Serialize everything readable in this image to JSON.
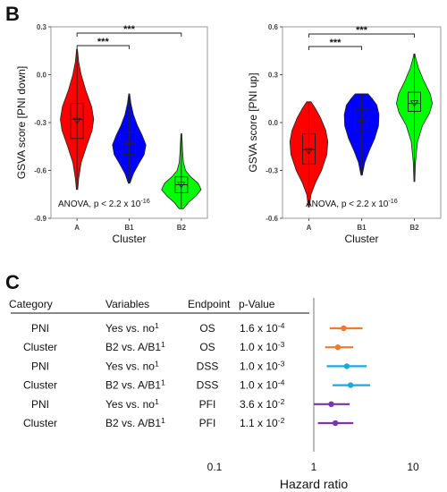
{
  "panel_b": {
    "letter": "B"
  },
  "panel_c": {
    "letter": "C"
  },
  "chart_data": [
    {
      "type": "violin",
      "panel": "B-left",
      "ylabel": "GSVA score [PNI down]",
      "xlabel": "Cluster",
      "ylim": [
        -0.9,
        0.3
      ],
      "yticks": [
        0.3,
        0.0,
        -0.3,
        -0.6,
        -0.9
      ],
      "ytick_labels": [
        "0.3",
        "0.0",
        "-0.3",
        "-0.6",
        "-0.9"
      ],
      "annotation": {
        "prefix": "ANOVA, p < 2.2 x 10",
        "exp": "-16"
      },
      "significance": [
        {
          "from": "A",
          "to": "B1",
          "label": "***"
        },
        {
          "from": "A",
          "to": "B2",
          "label": "***"
        }
      ],
      "groups": [
        {
          "name": "A",
          "color": "#ff0000",
          "min": -0.72,
          "max": 0.16,
          "q1": -0.4,
          "median": -0.28,
          "q3": -0.18,
          "mean": -0.29,
          "profile": [
            [
              -0.72,
              0.03
            ],
            [
              -0.65,
              0.08
            ],
            [
              -0.55,
              0.2
            ],
            [
              -0.45,
              0.45
            ],
            [
              -0.35,
              0.72
            ],
            [
              -0.28,
              0.8
            ],
            [
              -0.2,
              0.7
            ],
            [
              -0.1,
              0.42
            ],
            [
              0.0,
              0.2
            ],
            [
              0.08,
              0.08
            ],
            [
              0.16,
              0.02
            ]
          ]
        },
        {
          "name": "B1",
          "color": "#0000ff",
          "min": -0.68,
          "max": -0.12,
          "q1": -0.5,
          "median": -0.43,
          "q3": -0.36,
          "mean": -0.43,
          "profile": [
            [
              -0.68,
              0.04
            ],
            [
              -0.62,
              0.2
            ],
            [
              -0.56,
              0.45
            ],
            [
              -0.5,
              0.72
            ],
            [
              -0.44,
              0.8
            ],
            [
              -0.38,
              0.62
            ],
            [
              -0.32,
              0.4
            ],
            [
              -0.25,
              0.2
            ],
            [
              -0.18,
              0.08
            ],
            [
              -0.12,
              0.02
            ]
          ]
        },
        {
          "name": "B2",
          "color": "#00ff00",
          "min": -0.84,
          "max": -0.37,
          "q1": -0.74,
          "median": -0.69,
          "q3": -0.64,
          "mean": -0.69,
          "profile": [
            [
              -0.84,
              0.1
            ],
            [
              -0.8,
              0.35
            ],
            [
              -0.76,
              0.7
            ],
            [
              -0.72,
              0.95
            ],
            [
              -0.68,
              0.8
            ],
            [
              -0.64,
              0.45
            ],
            [
              -0.6,
              0.2
            ],
            [
              -0.55,
              0.1
            ],
            [
              -0.48,
              0.06
            ],
            [
              -0.42,
              0.04
            ],
            [
              -0.37,
              0.02
            ]
          ]
        }
      ]
    },
    {
      "type": "violin",
      "panel": "B-right",
      "ylabel": "GSVA score [PNI up]",
      "xlabel": "Cluster",
      "ylim": [
        -0.6,
        0.6
      ],
      "yticks": [
        0.6,
        0.3,
        0.0,
        -0.3,
        -0.6
      ],
      "ytick_labels": [
        "0.6",
        "0.3",
        "0.0",
        "-0.3",
        "-0.6"
      ],
      "annotation": {
        "prefix": "ANOVA, p < 2.2 x 10",
        "exp": "-16"
      },
      "significance": [
        {
          "from": "A",
          "to": "B1",
          "label": "***"
        },
        {
          "from": "A",
          "to": "B2",
          "label": "***"
        }
      ],
      "groups": [
        {
          "name": "A",
          "color": "#ff0000",
          "min": -0.53,
          "max": 0.13,
          "q1": -0.26,
          "median": -0.17,
          "q3": -0.07,
          "mean": -0.18,
          "profile": [
            [
              -0.53,
              0.02
            ],
            [
              -0.45,
              0.1
            ],
            [
              -0.38,
              0.3
            ],
            [
              -0.3,
              0.6
            ],
            [
              -0.2,
              0.85
            ],
            [
              -0.12,
              0.9
            ],
            [
              -0.05,
              0.8
            ],
            [
              0.03,
              0.55
            ],
            [
              0.09,
              0.3
            ],
            [
              0.13,
              0.1
            ]
          ]
        },
        {
          "name": "B1",
          "color": "#0000ff",
          "min": -0.33,
          "max": 0.18,
          "q1": -0.05,
          "median": 0.01,
          "q3": 0.08,
          "mean": 0.0,
          "profile": [
            [
              -0.33,
              0.03
            ],
            [
              -0.25,
              0.15
            ],
            [
              -0.18,
              0.35
            ],
            [
              -0.1,
              0.62
            ],
            [
              -0.02,
              0.8
            ],
            [
              0.05,
              0.82
            ],
            [
              0.11,
              0.72
            ],
            [
              0.15,
              0.5
            ],
            [
              0.18,
              0.3
            ]
          ]
        },
        {
          "name": "B2",
          "color": "#00ff00",
          "min": -0.37,
          "max": 0.43,
          "q1": 0.07,
          "median": 0.12,
          "q3": 0.19,
          "mean": 0.12,
          "profile": [
            [
              -0.37,
              0.02
            ],
            [
              -0.25,
              0.05
            ],
            [
              -0.12,
              0.15
            ],
            [
              -0.02,
              0.38
            ],
            [
              0.06,
              0.72
            ],
            [
              0.12,
              0.85
            ],
            [
              0.18,
              0.75
            ],
            [
              0.26,
              0.45
            ],
            [
              0.34,
              0.2
            ],
            [
              0.4,
              0.07
            ],
            [
              0.43,
              0.02
            ]
          ]
        }
      ]
    },
    {
      "type": "forest",
      "panel": "C",
      "xlabel": "Hazard ratio",
      "xscale": "log",
      "xlim": [
        0.1,
        10
      ],
      "xticks": [
        0.1,
        1,
        10
      ],
      "xtick_labels": [
        "0.1",
        "1",
        "10"
      ],
      "reference": 1,
      "columns": [
        "Category",
        "Variables",
        "Endpoint",
        "p-Value"
      ],
      "rows": [
        {
          "category": "PNI",
          "variable": "Yes vs. no",
          "sup": "1",
          "endpoint": "OS",
          "endpoint_color": "#ee7a2d",
          "p_mant": "1.6 x 10",
          "p_exp": "-4",
          "hr": 2.0,
          "lo": 1.45,
          "hi": 3.1
        },
        {
          "category": "Cluster",
          "variable": "B2 vs. A/B1",
          "sup": "1",
          "endpoint": "OS",
          "endpoint_color": "#ee7a2d",
          "p_mant": "1.0 x 10",
          "p_exp": "-3",
          "hr": 1.75,
          "lo": 1.3,
          "hi": 2.5
        },
        {
          "category": "PNI",
          "variable": "Yes vs. no",
          "sup": "1",
          "endpoint": "DSS",
          "endpoint_color": "#1aa8e0",
          "p_mant": "1.0 x 10",
          "p_exp": "-3",
          "hr": 2.15,
          "lo": 1.35,
          "hi": 3.4
        },
        {
          "category": "Cluster",
          "variable": "B2 vs. A/B1",
          "sup": "1",
          "endpoint": "DSS",
          "endpoint_color": "#1aa8e0",
          "p_mant": "1.0 x 10",
          "p_exp": "-4",
          "hr": 2.35,
          "lo": 1.55,
          "hi": 3.7
        },
        {
          "category": "PNI",
          "variable": "Yes vs. no",
          "sup": "1",
          "endpoint": "PFI",
          "endpoint_color": "#7a35a8",
          "p_mant": "3.6 x 10",
          "p_exp": "-2",
          "hr": 1.5,
          "lo": 1.0,
          "hi": 2.3
        },
        {
          "category": "Cluster",
          "variable": "B2 vs. A/B1",
          "sup": "1",
          "endpoint": "PFI",
          "endpoint_color": "#7a35a8",
          "p_mant": "1.1 x 10",
          "p_exp": "-2",
          "hr": 1.65,
          "lo": 1.1,
          "hi": 2.5
        }
      ]
    }
  ]
}
